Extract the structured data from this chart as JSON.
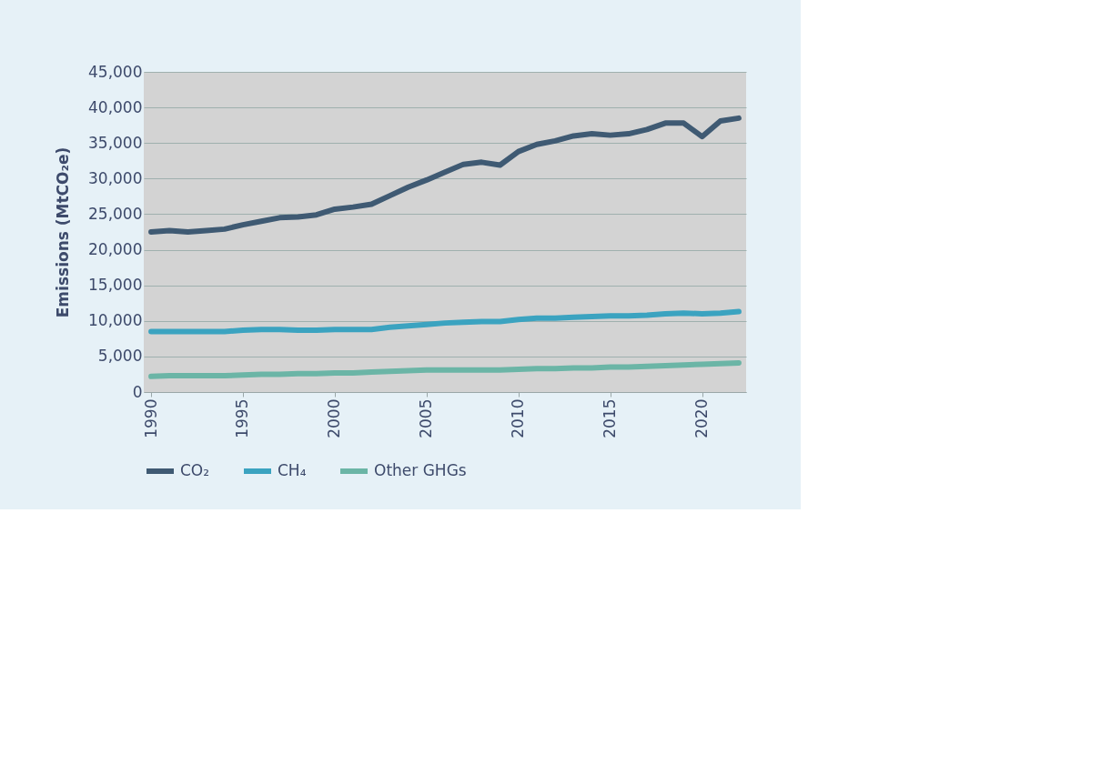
{
  "chart_data": {
    "type": "line",
    "ylabel": "Emissions (MtCO₂e)",
    "x": [
      1990,
      1991,
      1992,
      1993,
      1994,
      1995,
      1996,
      1997,
      1998,
      1999,
      2000,
      2001,
      2002,
      2003,
      2004,
      2005,
      2006,
      2007,
      2008,
      2009,
      2010,
      2011,
      2012,
      2013,
      2014,
      2015,
      2016,
      2017,
      2018,
      2019,
      2020,
      2021,
      2022
    ],
    "series": [
      {
        "name": "CO₂",
        "color": "#3f5a73",
        "values": [
          22500,
          22700,
          22500,
          22700,
          22900,
          23500,
          24000,
          24500,
          24600,
          24900,
          25700,
          26000,
          26400,
          27600,
          28800,
          29800,
          30900,
          32000,
          32300,
          31900,
          33800,
          34800,
          35300,
          36000,
          36300,
          36100,
          36300,
          36900,
          37800,
          37800,
          35900,
          38100,
          38500
        ]
      },
      {
        "name": "CH₄",
        "color": "#3ba3c0",
        "values": [
          8500,
          8500,
          8500,
          8500,
          8500,
          8700,
          8800,
          8800,
          8700,
          8700,
          8800,
          8800,
          8800,
          9100,
          9300,
          9500,
          9700,
          9800,
          9900,
          9900,
          10200,
          10400,
          10400,
          10500,
          10600,
          10700,
          10700,
          10800,
          11000,
          11100,
          11000,
          11100,
          11300
        ]
      },
      {
        "name": "Other GHGs",
        "color": "#6bb5a6",
        "values": [
          2200,
          2300,
          2300,
          2300,
          2300,
          2400,
          2500,
          2500,
          2600,
          2600,
          2700,
          2700,
          2800,
          2900,
          3000,
          3100,
          3100,
          3100,
          3100,
          3100,
          3200,
          3300,
          3300,
          3400,
          3400,
          3500,
          3500,
          3600,
          3700,
          3800,
          3900,
          4000,
          4100
        ]
      }
    ],
    "xlim": [
      1989.6,
      2022.4
    ],
    "xticks": [
      1990,
      1995,
      2000,
      2005,
      2010,
      2015,
      2020
    ],
    "ylim": [
      0,
      45000
    ],
    "yticks": [
      0,
      {
        "value": 5000,
        "label": "5,000"
      },
      {
        "value": 10000,
        "label": "10,000"
      },
      {
        "value": 15000,
        "label": "15,000"
      },
      {
        "value": 20000,
        "label": "20,000"
      },
      {
        "value": 25000,
        "label": "25,000"
      },
      {
        "value": 30000,
        "label": "30,000"
      },
      {
        "value": 35000,
        "label": "35,000"
      },
      {
        "value": 40000,
        "label": "40,000"
      },
      {
        "value": 45000,
        "label": "45,000"
      }
    ],
    "grid": "y",
    "legend": "bottom",
    "marker": "none",
    "line_style": "solid"
  }
}
